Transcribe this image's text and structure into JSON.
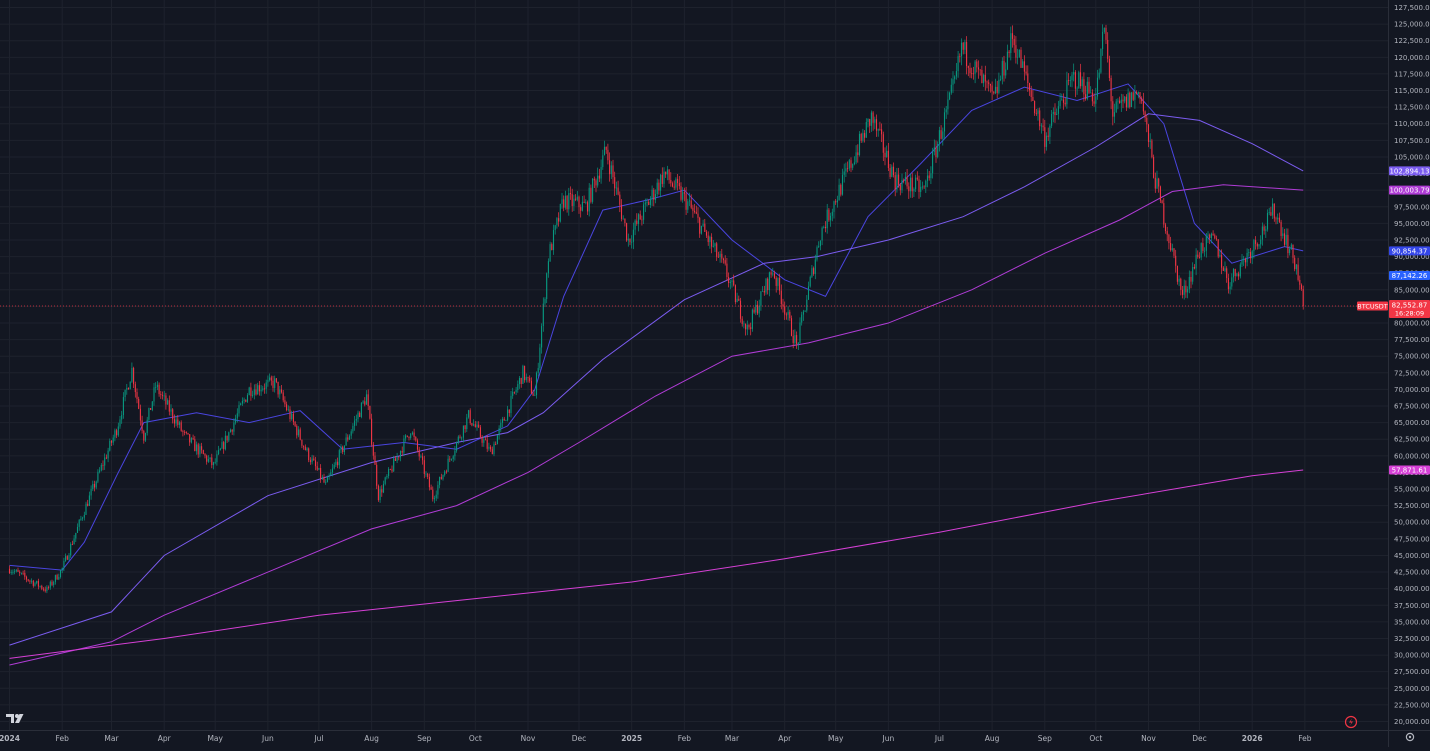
{
  "chart_data": {
    "type": "candlestick",
    "ohlc_samples": [
      {
        "date": "2024-01-01",
        "close": 43000
      },
      {
        "date": "2024-01-23",
        "close": 39800
      },
      {
        "date": "2024-02-01",
        "close": 43000
      },
      {
        "date": "2024-02-14",
        "close": 51800
      },
      {
        "date": "2024-03-04",
        "close": 64000
      },
      {
        "date": "2024-03-13",
        "close": 73000
      },
      {
        "date": "2024-03-20",
        "close": 63000
      },
      {
        "date": "2024-03-27",
        "close": 70500
      },
      {
        "date": "2024-04-13",
        "close": 63000
      },
      {
        "date": "2024-04-30",
        "close": 58500
      },
      {
        "date": "2024-05-21",
        "close": 70000
      },
      {
        "date": "2024-06-05",
        "close": 71000
      },
      {
        "date": "2024-06-24",
        "close": 60500
      },
      {
        "date": "2024-07-05",
        "close": 55500
      },
      {
        "date": "2024-07-29",
        "close": 69000
      },
      {
        "date": "2024-08-05",
        "close": 54000
      },
      {
        "date": "2024-08-24",
        "close": 64000
      },
      {
        "date": "2024-09-06",
        "close": 53800
      },
      {
        "date": "2024-09-27",
        "close": 66000
      },
      {
        "date": "2024-10-10",
        "close": 60500
      },
      {
        "date": "2024-10-29",
        "close": 72500
      },
      {
        "date": "2024-11-05",
        "close": 69000
      },
      {
        "date": "2024-11-13",
        "close": 90000
      },
      {
        "date": "2024-11-22",
        "close": 98500
      },
      {
        "date": "2024-12-05",
        "close": 97500
      },
      {
        "date": "2024-12-17",
        "close": 106000
      },
      {
        "date": "2024-12-30",
        "close": 92500
      },
      {
        "date": "2025-01-20",
        "close": 102500
      },
      {
        "date": "2025-02-03",
        "close": 98000
      },
      {
        "date": "2025-02-25",
        "close": 88000
      },
      {
        "date": "2025-03-10",
        "close": 79000
      },
      {
        "date": "2025-03-25",
        "close": 88000
      },
      {
        "date": "2025-04-08",
        "close": 76500
      },
      {
        "date": "2025-04-22",
        "close": 93500
      },
      {
        "date": "2025-05-10",
        "close": 104000
      },
      {
        "date": "2025-05-22",
        "close": 111000
      },
      {
        "date": "2025-06-05",
        "close": 101500
      },
      {
        "date": "2025-06-22",
        "close": 100000
      },
      {
        "date": "2025-07-10",
        "close": 116000
      },
      {
        "date": "2025-07-14",
        "close": 121500
      },
      {
        "date": "2025-08-02",
        "close": 113500
      },
      {
        "date": "2025-08-13",
        "close": 123000
      },
      {
        "date": "2025-09-01",
        "close": 108000
      },
      {
        "date": "2025-09-18",
        "close": 117000
      },
      {
        "date": "2025-10-01",
        "close": 114000
      },
      {
        "date": "2025-10-06",
        "close": 124500
      },
      {
        "date": "2025-10-11",
        "close": 111500
      },
      {
        "date": "2025-10-27",
        "close": 115000
      },
      {
        "date": "2025-11-05",
        "close": 101500
      },
      {
        "date": "2025-11-21",
        "close": 84000
      },
      {
        "date": "2025-12-02",
        "close": 91500
      },
      {
        "date": "2025-12-10",
        "close": 92500
      },
      {
        "date": "2025-12-18",
        "close": 86000
      },
      {
        "date": "2026-01-05",
        "close": 93000
      },
      {
        "date": "2026-01-14",
        "close": 97000
      },
      {
        "date": "2026-01-27",
        "close": 88500
      },
      {
        "date": "2026-01-31",
        "close": 82552.87
      }
    ],
    "ma_lines": [
      {
        "color": "#4a45e0",
        "current": "90,854.37",
        "points": [
          [
            "2024-01-01",
            43500
          ],
          [
            "2024-02-01",
            42800
          ],
          [
            "2024-02-14",
            47000
          ],
          [
            "2024-03-04",
            57000
          ],
          [
            "2024-03-20",
            65000
          ],
          [
            "2024-04-20",
            66500
          ],
          [
            "2024-05-21",
            65000
          ],
          [
            "2024-06-20",
            66800
          ],
          [
            "2024-07-15",
            61000
          ],
          [
            "2024-08-20",
            62000
          ],
          [
            "2024-09-20",
            61000
          ],
          [
            "2024-10-20",
            64500
          ],
          [
            "2024-11-05",
            70000
          ],
          [
            "2024-11-22",
            84000
          ],
          [
            "2024-12-15",
            97000
          ],
          [
            "2025-01-10",
            98500
          ],
          [
            "2025-02-01",
            100000
          ],
          [
            "2025-03-01",
            92500
          ],
          [
            "2025-04-01",
            86500
          ],
          [
            "2025-04-25",
            84000
          ],
          [
            "2025-05-20",
            96000
          ],
          [
            "2025-06-20",
            104000
          ],
          [
            "2025-07-20",
            112000
          ],
          [
            "2025-08-20",
            115500
          ],
          [
            "2025-09-20",
            113500
          ],
          [
            "2025-10-20",
            116000
          ],
          [
            "2025-11-10",
            110000
          ],
          [
            "2025-11-28",
            95000
          ],
          [
            "2025-12-20",
            89000
          ],
          [
            "2026-01-20",
            91500
          ],
          [
            "2026-01-31",
            90854
          ]
        ]
      },
      {
        "color": "#7b5cf0",
        "current": "102,894.13",
        "points": [
          [
            "2024-01-01",
            31500
          ],
          [
            "2024-03-01",
            36500
          ],
          [
            "2024-04-01",
            45000
          ],
          [
            "2024-06-01",
            54000
          ],
          [
            "2024-08-01",
            59000
          ],
          [
            "2024-09-20",
            62000
          ],
          [
            "2024-10-20",
            63500
          ],
          [
            "2024-11-10",
            66500
          ],
          [
            "2024-12-15",
            74500
          ],
          [
            "2025-02-01",
            83500
          ],
          [
            "2025-03-20",
            89000
          ],
          [
            "2025-04-20",
            90000
          ],
          [
            "2025-06-01",
            92500
          ],
          [
            "2025-07-15",
            96000
          ],
          [
            "2025-08-20",
            100500
          ],
          [
            "2025-10-01",
            106500
          ],
          [
            "2025-11-01",
            111500
          ],
          [
            "2025-12-01",
            110500
          ],
          [
            "2026-01-01",
            107000
          ],
          [
            "2026-01-31",
            102894
          ]
        ]
      },
      {
        "color": "#b03cd6",
        "current": "100,003.79",
        "points": [
          [
            "2024-01-01",
            28500
          ],
          [
            "2024-03-01",
            32000
          ],
          [
            "2024-04-01",
            36000
          ],
          [
            "2024-06-01",
            42500
          ],
          [
            "2024-08-01",
            49000
          ],
          [
            "2024-09-20",
            52500
          ],
          [
            "2024-11-01",
            57500
          ],
          [
            "2024-12-01",
            62000
          ],
          [
            "2025-01-15",
            69000
          ],
          [
            "2025-03-01",
            75000
          ],
          [
            "2025-04-15",
            77000
          ],
          [
            "2025-06-01",
            80000
          ],
          [
            "2025-07-20",
            85000
          ],
          [
            "2025-09-01",
            90500
          ],
          [
            "2025-10-15",
            95500
          ],
          [
            "2025-11-15",
            99800
          ],
          [
            "2025-12-15",
            100800
          ],
          [
            "2026-01-31",
            100004
          ]
        ]
      },
      {
        "color": "#d640d6",
        "current": "57,871.61",
        "points": [
          [
            "2024-01-01",
            29500
          ],
          [
            "2024-04-01",
            32500
          ],
          [
            "2024-07-01",
            36000
          ],
          [
            "2024-10-01",
            38500
          ],
          [
            "2025-01-01",
            41000
          ],
          [
            "2025-04-01",
            44500
          ],
          [
            "2025-07-01",
            48500
          ],
          [
            "2025-10-01",
            53000
          ],
          [
            "2026-01-01",
            57000
          ],
          [
            "2026-01-31",
            57872
          ]
        ]
      }
    ],
    "y_ticks": [
      "20,000.00",
      "22,500.00",
      "25,000.00",
      "27,500.00",
      "30,000.00",
      "32,500.00",
      "35,000.00",
      "37,500.00",
      "40,000.00",
      "42,500.00",
      "45,000.00",
      "47,500.00",
      "50,000.00",
      "52,500.00",
      "55,000.00",
      "57,500.00",
      "60,000.00",
      "62,500.00",
      "65,000.00",
      "67,500.00",
      "70,000.00",
      "72,500.00",
      "75,000.00",
      "77,500.00",
      "80,000.00",
      "82,500.00",
      "85,000.00",
      "87,500.00",
      "90,000.00",
      "92,500.00",
      "95,000.00",
      "97,500.00",
      "100,000.00",
      "102,500.00",
      "105,000.00",
      "107,500.00",
      "110,000.00",
      "112,500.00",
      "115,000.00",
      "117,500.00",
      "120,000.00",
      "122,500.00",
      "125,000.00",
      "127,500.00"
    ],
    "x_ticks": [
      {
        "label": "2024",
        "date": "2024-01-01",
        "bold": true
      },
      {
        "label": "Feb",
        "date": "2024-02-01"
      },
      {
        "label": "Mar",
        "date": "2024-03-01"
      },
      {
        "label": "Apr",
        "date": "2024-04-01"
      },
      {
        "label": "May",
        "date": "2024-05-01"
      },
      {
        "label": "Jun",
        "date": "2024-06-01"
      },
      {
        "label": "Jul",
        "date": "2024-07-01"
      },
      {
        "label": "Aug",
        "date": "2024-08-01"
      },
      {
        "label": "Sep",
        "date": "2024-09-01"
      },
      {
        "label": "Oct",
        "date": "2024-10-01"
      },
      {
        "label": "Nov",
        "date": "2024-11-01"
      },
      {
        "label": "Dec",
        "date": "2024-12-01"
      },
      {
        "label": "2025",
        "date": "2025-01-01",
        "bold": true
      },
      {
        "label": "Feb",
        "date": "2025-02-01"
      },
      {
        "label": "Mar",
        "date": "2025-03-01"
      },
      {
        "label": "Apr",
        "date": "2025-04-01"
      },
      {
        "label": "May",
        "date": "2025-05-01"
      },
      {
        "label": "Jun",
        "date": "2025-06-01"
      },
      {
        "label": "Jul",
        "date": "2025-07-01"
      },
      {
        "label": "Aug",
        "date": "2025-08-01"
      },
      {
        "label": "Sep",
        "date": "2025-09-01"
      },
      {
        "label": "Oct",
        "date": "2025-10-01"
      },
      {
        "label": "Nov",
        "date": "2025-11-01"
      },
      {
        "label": "Dec",
        "date": "2025-12-01"
      },
      {
        "label": "2026",
        "date": "2026-01-01",
        "bold": true
      },
      {
        "label": "Feb",
        "date": "2026-02-01"
      }
    ],
    "price_tags": [
      {
        "text": "102,894.13",
        "value": 102894.13,
        "bg": "#7b5cf0"
      },
      {
        "text": "100,003.79",
        "value": 100003.79,
        "bg": "#b03cd6"
      },
      {
        "text": "90,854.37",
        "value": 90854.37,
        "bg": "#3446e8"
      },
      {
        "text": "87,142.26",
        "value": 87142.26,
        "bg": "#2962ff"
      },
      {
        "text": "57,871.61",
        "value": 57871.61,
        "bg": "#d640d6"
      }
    ],
    "last_price": {
      "symbol": "BTCUSDT",
      "price": "82,552.87",
      "countdown": "16:28:09",
      "value": 82552.87,
      "bg": "#f23645"
    },
    "colors": {
      "up": "#089981",
      "down": "#f23645",
      "background": "#131722",
      "grid": "#1e222d",
      "axis_text": "#b2b5be"
    },
    "y_range": [
      20000,
      127500
    ],
    "grid": true
  },
  "ui": {
    "logo_text": "TV",
    "logo_icon": "tradingview-logo-icon",
    "replay_icon": "lightning-icon",
    "settings_icon": "gear-icon"
  }
}
